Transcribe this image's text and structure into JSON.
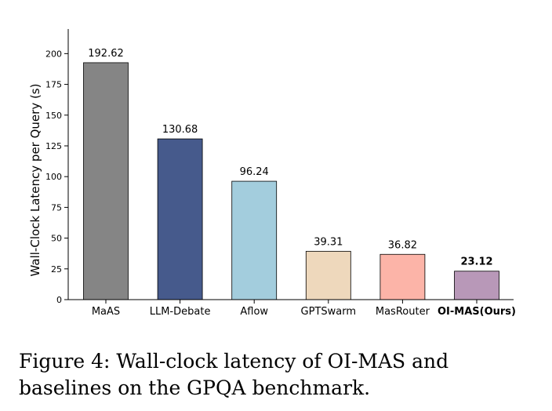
{
  "chart_data": {
    "type": "bar",
    "categories": [
      "MaAS",
      "LLM-Debate",
      "Aflow",
      "GPTSwarm",
      "MasRouter",
      "OI-MAS(Ours)"
    ],
    "values": [
      192.62,
      130.68,
      96.24,
      39.31,
      36.82,
      23.12
    ],
    "value_labels": [
      "192.62",
      "130.68",
      "96.24",
      "39.31",
      "36.82",
      "23.12"
    ],
    "colors": [
      "#858585",
      "#465a8c",
      "#a3cddd",
      "#eed8bc",
      "#fcb4a8",
      "#b898b8"
    ],
    "highlight_index": 5,
    "ylabel": "Wall-Clock Latency per Query (s)",
    "xlabel": "",
    "ylim": [
      0,
      220
    ],
    "yticks": [
      0,
      25,
      50,
      75,
      100,
      125,
      150,
      175,
      200
    ],
    "grid": false
  },
  "caption": "Figure 4: Wall-clock latency of OI-MAS and baselines on the GPQA benchmark."
}
